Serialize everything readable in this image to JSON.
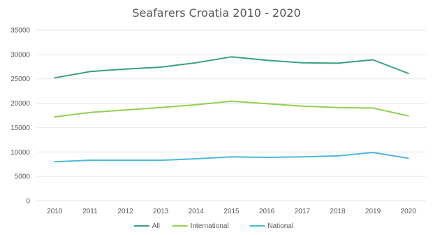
{
  "chart_data": {
    "type": "line",
    "title": "Seafarers Croatia 2010 - 2020",
    "xlabel": "",
    "ylabel": "",
    "categories": [
      "2010",
      "2011",
      "2012",
      "2013",
      "2014",
      "2015",
      "2016",
      "2017",
      "2018",
      "2019",
      "2020"
    ],
    "ylim": [
      0,
      35000
    ],
    "yticks": [
      0,
      5000,
      10000,
      15000,
      20000,
      25000,
      30000,
      35000
    ],
    "grid": true,
    "legend_position": "bottom",
    "series": [
      {
        "name": "All",
        "color": "#3aa17e",
        "values": [
          25200,
          26500,
          27000,
          27400,
          28300,
          29500,
          28800,
          28300,
          28200,
          28900,
          26100
        ]
      },
      {
        "name": "International",
        "color": "#92d050",
        "values": [
          17200,
          18100,
          18600,
          19100,
          19700,
          20400,
          19900,
          19400,
          19100,
          19000,
          17400
        ]
      },
      {
        "name": "National",
        "color": "#4bb8dc",
        "values": [
          8000,
          8300,
          8300,
          8300,
          8600,
          9000,
          8900,
          9000,
          9200,
          9900,
          8700
        ]
      }
    ]
  }
}
